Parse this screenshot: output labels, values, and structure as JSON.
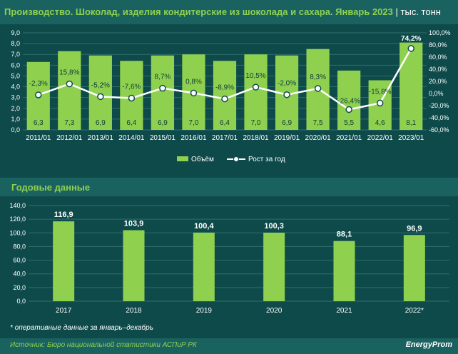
{
  "header": {
    "title": "Производство. Шоколад, изделия кондитерские из шоколада и сахара. Январь 2023",
    "unit": "тыс. тонн"
  },
  "annual_section": {
    "title": "Годовые данные",
    "footnote": "* оперативные данные за январь–декабрь"
  },
  "footer": {
    "source": "Источник: Бюро национальной статистики АСПиР РК",
    "logo": "EnergyProm"
  },
  "colors": {
    "background": "#0f4a4a",
    "bar": "#8fd14f",
    "line": "#ffffff",
    "accent_text": "#8fd14f"
  },
  "chart_data": [
    {
      "type": "bar",
      "categories": [
        "2011/01",
        "2012/01",
        "2013/01",
        "2014/01",
        "2015/01",
        "2016/01",
        "2017/01",
        "2018/01",
        "2019/01",
        "2020/01",
        "2021/01",
        "2022/01",
        "2023/01"
      ],
      "series": [
        {
          "name": "Объём",
          "type": "bar",
          "axis": "left",
          "values": [
            6.3,
            7.3,
            6.9,
            6.4,
            6.9,
            7.0,
            6.4,
            7.0,
            6.9,
            7.5,
            5.5,
            4.6,
            8.1
          ],
          "labels": [
            "6,3",
            "7,3",
            "6,9",
            "6,4",
            "6,9",
            "7,0",
            "6,4",
            "7,0",
            "6,9",
            "7,5",
            "5,5",
            "4,6",
            "8,1"
          ]
        },
        {
          "name": "Рост за год",
          "type": "line",
          "axis": "right",
          "values": [
            -2.3,
            15.8,
            -5.2,
            -7.6,
            8.7,
            0.8,
            -8.9,
            10.5,
            -2.0,
            8.3,
            -26.4,
            -15.8,
            74.2
          ],
          "labels": [
            "-2,3%",
            "15,8%",
            "-5,2%",
            "-7,6%",
            "8,7%",
            "0,8%",
            "-8,9%",
            "10,5%",
            "-2,0%",
            "8,3%",
            "-26,4%",
            "-15,8%",
            "74,2%"
          ]
        }
      ],
      "ylim": [
        0,
        9
      ],
      "yticks": [
        "0,0",
        "1,0",
        "2,0",
        "3,0",
        "4,0",
        "5,0",
        "6,0",
        "7,0",
        "8,0",
        "9,0"
      ],
      "y2lim": [
        -60,
        100
      ],
      "y2ticks": [
        "-60,0%",
        "-40,0%",
        "-20,0%",
        "0,0%",
        "20,0%",
        "40,0%",
        "60,0%",
        "80,0%",
        "100,0%"
      ],
      "grid": true,
      "legend": "bottom"
    },
    {
      "type": "bar",
      "categories": [
        "2017",
        "2018",
        "2019",
        "2020",
        "2021",
        "2022*"
      ],
      "values": [
        116.9,
        103.9,
        100.4,
        100.3,
        88.1,
        96.9
      ],
      "labels": [
        "116,9",
        "103,9",
        "100,4",
        "100,3",
        "88,1",
        "96,9"
      ],
      "ylim": [
        0,
        140
      ],
      "yticks": [
        "0,0",
        "20,0",
        "40,0",
        "60,0",
        "80,0",
        "100,0",
        "120,0",
        "140,0"
      ],
      "grid": true
    }
  ]
}
